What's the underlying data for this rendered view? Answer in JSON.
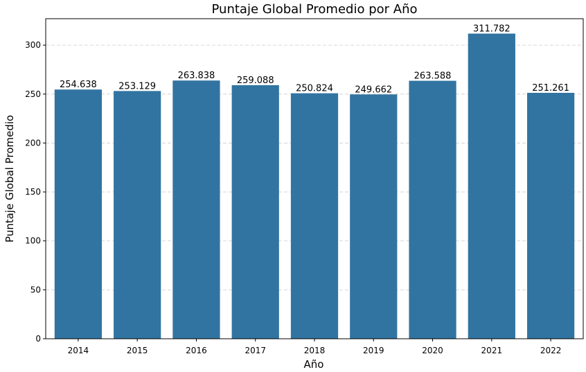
{
  "chart_data": {
    "type": "bar",
    "title": "Puntaje Global Promedio por Año",
    "xlabel": "Año",
    "ylabel": "Puntaje Global Promedio",
    "categories": [
      "2014",
      "2015",
      "2016",
      "2017",
      "2018",
      "2019",
      "2020",
      "2021",
      "2022"
    ],
    "values": [
      254.638,
      253.129,
      263.838,
      259.088,
      250.824,
      249.662,
      263.588,
      311.782,
      251.261
    ],
    "value_labels": [
      "254.638",
      "253.129",
      "263.838",
      "259.088",
      "250.824",
      "249.662",
      "263.588",
      "311.782",
      "251.261"
    ],
    "ylim": [
      0,
      327
    ],
    "yticks": [
      0,
      50,
      100,
      150,
      200,
      250,
      300
    ],
    "grid": "y-dashed",
    "bar_color": "#3274a1"
  }
}
